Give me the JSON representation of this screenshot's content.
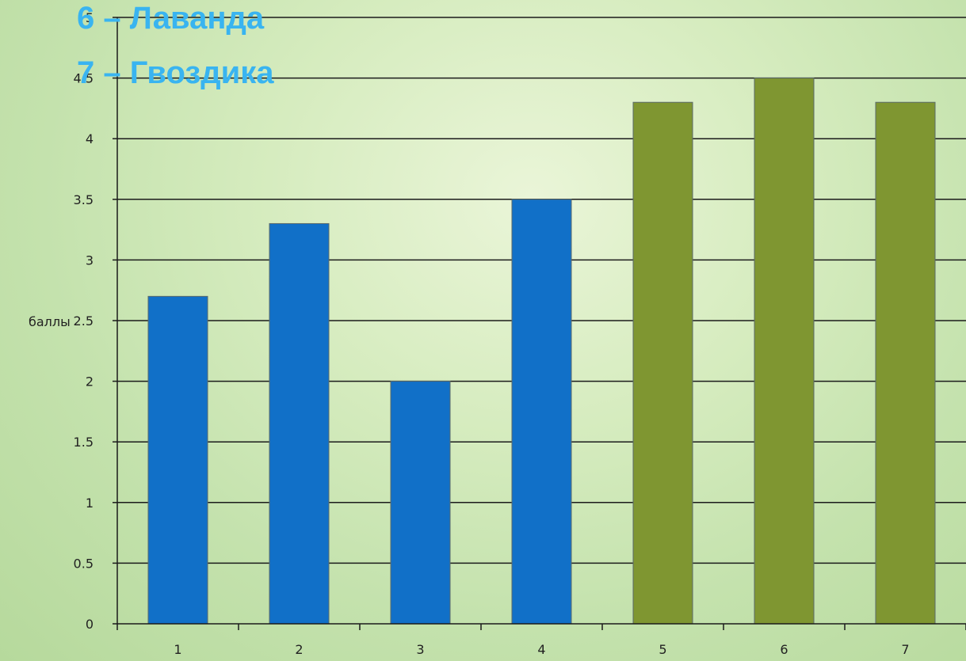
{
  "legend": [
    {
      "text": "6 – Лаванда"
    },
    {
      "text": "7 – Гвоздика"
    }
  ],
  "chart_data": {
    "type": "bar",
    "categories": [
      "1",
      "2",
      "3",
      "4",
      "5",
      "6",
      "7"
    ],
    "values": [
      2.7,
      3.3,
      2.0,
      3.5,
      4.3,
      4.5,
      4.3
    ],
    "bar_colors": [
      "#1170c8",
      "#1170c8",
      "#1170c8",
      "#1170c8",
      "#7f9631",
      "#7f9631",
      "#7f9631"
    ],
    "ylabel": "баллы",
    "xlabel": "",
    "ylim": [
      0,
      5
    ],
    "yticks": [
      "0",
      "0.5",
      "1",
      "1.5",
      "2",
      "2.5",
      "3",
      "3.5",
      "4",
      "4.5",
      "5"
    ],
    "grid": true
  }
}
